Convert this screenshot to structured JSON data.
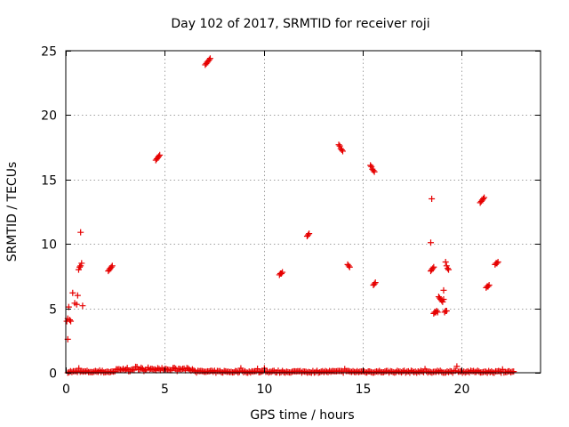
{
  "chart_data": {
    "type": "scatter",
    "title": "Day 102 of 2017, SRMTID for receiver roji",
    "xlabel": "GPS time / hours",
    "ylabel": "SRMTID / TECUs",
    "xlim": [
      0,
      24
    ],
    "ylim": [
      0,
      25
    ],
    "xticks": [
      0,
      5,
      10,
      15,
      20
    ],
    "yticks": [
      0,
      5,
      10,
      15,
      20,
      25
    ],
    "xtick_labels": [
      "0",
      "5",
      "10",
      "15",
      "20"
    ],
    "ytick_labels": [
      "0",
      "5",
      "10",
      "15",
      "20",
      "25"
    ],
    "grid": true,
    "marker": "+",
    "color": "#e60000",
    "baseline": {
      "x_start": 0.1,
      "x_end": 22.7,
      "typical_y": 0.1,
      "max_y": 0.5
    },
    "clusters": [
      {
        "x": [
          0.05,
          0.1,
          0.15,
          0.2,
          0.25
        ],
        "y": [
          4.0,
          4.2,
          5.1,
          4.1,
          4.0
        ]
      },
      {
        "x": [
          0.1
        ],
        "y": [
          2.6
        ]
      },
      {
        "x": [
          0.35,
          0.45,
          0.55
        ],
        "y": [
          6.2,
          5.4,
          5.3
        ]
      },
      {
        "x": [
          0.6,
          0.7,
          0.8
        ],
        "y": [
          6.0,
          8.2,
          8.5
        ]
      },
      {
        "x": [
          0.65,
          0.75,
          0.85
        ],
        "y": [
          8.0,
          8.3,
          5.2
        ]
      },
      {
        "x": [
          0.75
        ],
        "y": [
          10.9
        ]
      },
      {
        "x": [
          2.15,
          2.2,
          2.25,
          2.3,
          2.35
        ],
        "y": [
          7.9,
          8.0,
          8.1,
          8.2,
          8.3
        ]
      },
      {
        "x": [
          4.55,
          4.6,
          4.65,
          4.7,
          4.75
        ],
        "y": [
          16.5,
          16.6,
          16.7,
          16.8,
          16.9
        ]
      },
      {
        "x": [
          7.05,
          7.1,
          7.15,
          7.2,
          7.25,
          7.3
        ],
        "y": [
          23.9,
          24.0,
          24.1,
          24.2,
          24.3,
          24.4
        ]
      },
      {
        "x": [
          10.8,
          10.85,
          10.9,
          10.95
        ],
        "y": [
          7.6,
          7.7,
          7.7,
          7.8
        ]
      },
      {
        "x": [
          12.2,
          12.25,
          12.3
        ],
        "y": [
          10.6,
          10.7,
          10.8
        ]
      },
      {
        "x": [
          13.8,
          13.85,
          13.9,
          13.95,
          14.0
        ],
        "y": [
          17.7,
          17.6,
          17.4,
          17.3,
          17.2
        ]
      },
      {
        "x": [
          14.25,
          14.3,
          14.35
        ],
        "y": [
          8.4,
          8.3,
          8.2
        ]
      },
      {
        "x": [
          15.4,
          15.45,
          15.5,
          15.55,
          15.6
        ],
        "y": [
          16.1,
          16.0,
          15.8,
          15.7,
          15.6
        ]
      },
      {
        "x": [
          15.55,
          15.6,
          15.65
        ],
        "y": [
          6.8,
          6.9,
          7.0
        ]
      },
      {
        "x": [
          18.5
        ],
        "y": [
          13.5
        ]
      },
      {
        "x": [
          18.45
        ],
        "y": [
          10.1
        ]
      },
      {
        "x": [
          18.45,
          18.5,
          18.55,
          18.6
        ],
        "y": [
          7.9,
          8.0,
          8.1,
          8.2
        ]
      },
      {
        "x": [
          18.6,
          18.65,
          18.7,
          18.75,
          18.8
        ],
        "y": [
          4.6,
          4.7,
          4.7,
          4.8,
          4.7
        ]
      },
      {
        "x": [
          18.85,
          18.9,
          18.95,
          19.0,
          19.05,
          19.1
        ],
        "y": [
          5.9,
          5.8,
          5.7,
          5.6,
          5.5,
          5.7
        ]
      },
      {
        "x": [
          19.1
        ],
        "y": [
          6.4
        ]
      },
      {
        "x": [
          19.15,
          19.2,
          19.25
        ],
        "y": [
          4.7,
          4.8,
          4.8
        ]
      },
      {
        "x": [
          19.2,
          19.25,
          19.3,
          19.35
        ],
        "y": [
          8.6,
          8.3,
          8.1,
          8.0
        ]
      },
      {
        "x": [
          20.95,
          21.0,
          21.05,
          21.1,
          21.15
        ],
        "y": [
          13.2,
          13.3,
          13.4,
          13.5,
          13.6
        ]
      },
      {
        "x": [
          21.25,
          21.3,
          21.35,
          21.4
        ],
        "y": [
          6.6,
          6.7,
          6.7,
          6.8
        ]
      },
      {
        "x": [
          21.7,
          21.75,
          21.8,
          21.85
        ],
        "y": [
          8.4,
          8.5,
          8.5,
          8.6
        ]
      }
    ]
  }
}
